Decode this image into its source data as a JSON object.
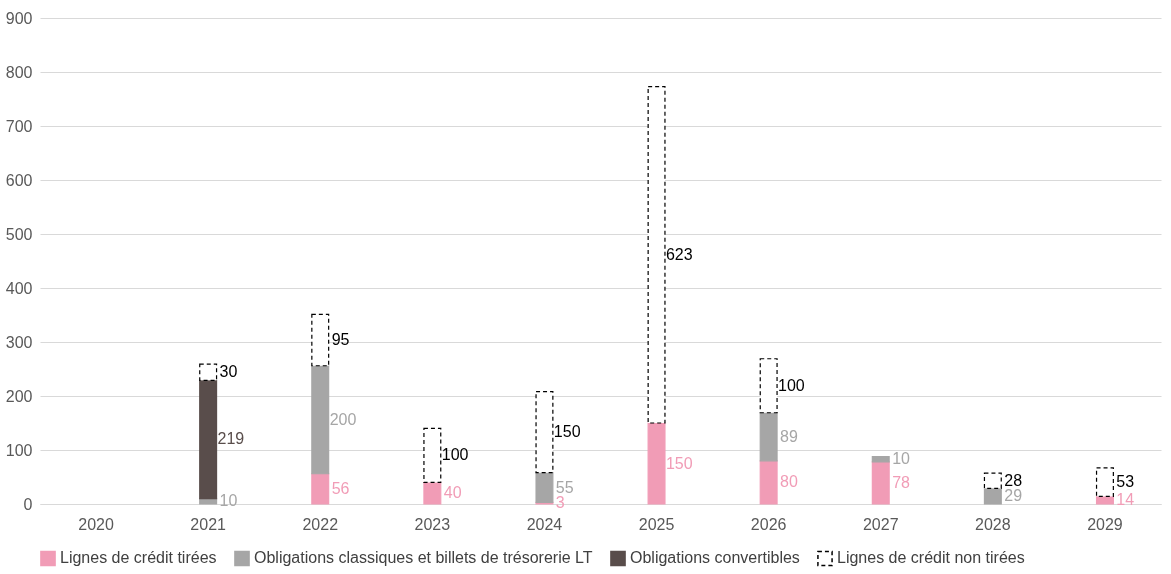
{
  "chart_data": {
    "type": "bar",
    "stacked": true,
    "categories": [
      "2020",
      "2021",
      "2022",
      "2023",
      "2024",
      "2025",
      "2026",
      "2027",
      "2028",
      "2029"
    ],
    "series": [
      {
        "name": "Lignes de crédit tirées",
        "color": "#f19cb6",
        "values": [
          null,
          null,
          56,
          40,
          3,
          150,
          80,
          78,
          null,
          14
        ]
      },
      {
        "name": "Obligations classiques et billets de trésorerie LT",
        "color": "#a6a6a6",
        "values": [
          null,
          10,
          200,
          null,
          55,
          null,
          89,
          10,
          29,
          null
        ]
      },
      {
        "name": "Obligations convertibles",
        "color": "#594d4b",
        "values": [
          null,
          219,
          null,
          null,
          null,
          null,
          null,
          null,
          null,
          null
        ]
      },
      {
        "name": "Lignes de crédit non tirées",
        "color": "#ffffff",
        "line_style": "dashed",
        "values": [
          null,
          30,
          95,
          100,
          150,
          623,
          100,
          null,
          28,
          53
        ]
      }
    ],
    "ylim": [
      0,
      900
    ],
    "yticks": [
      0,
      100,
      200,
      300,
      400,
      500,
      600,
      700,
      800,
      900
    ],
    "grid": "y",
    "legend": "bottom",
    "data_labels": true
  }
}
